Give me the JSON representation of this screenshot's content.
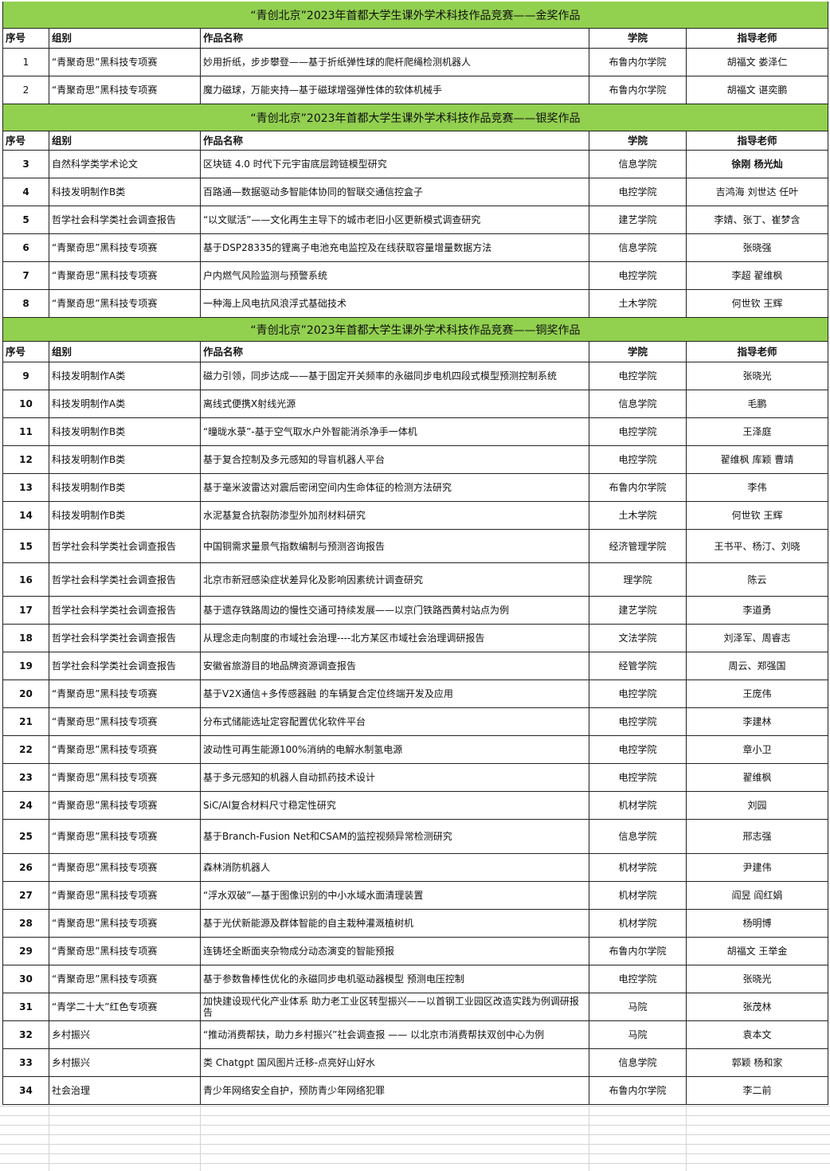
{
  "headers": [
    "序号",
    "组别",
    "作品名称",
    "学院",
    "指导老师"
  ],
  "sections": [
    {
      "title": "“青创北京”2023年首都大学生课外学术科技作品竞赛——金奖作品",
      "bold_numbers": false,
      "rows": [
        [
          "1",
          "“青聚奇思”黑科技专项赛",
          "妙用折纸，步步攀登——基于折纸弹性球的爬杆爬绳检测机器人",
          "布鲁内尔学院",
          "胡福文 娄泽仁"
        ],
        [
          "2",
          "“青聚奇思”黑科技专项赛",
          "魔力磁球，万能夹持—基于磁球增强弹性体的软体机械手",
          "布鲁内尔学院",
          "胡福文 谌奕鹏"
        ]
      ]
    },
    {
      "title": "“青创北京”2023年首都大学生课外学术科技作品竞赛——银奖作品",
      "bold_numbers": true,
      "rows": [
        [
          "3",
          "自然科学类学术论文",
          "区块链 4.0 时代下元宇宙底层跨链模型研究",
          "信息学院",
          "徐刚 杨光灿"
        ],
        [
          "4",
          "科技发明制作B类",
          "百路通—数据驱动多智能体协同的智联交通信控盒子",
          "电控学院",
          "吉鸿海 刘世达 任叶"
        ],
        [
          "5",
          "哲学社会科学类社会调查报告",
          "“以文赋活”——文化再生主导下的城市老旧小区更新模式调查研究",
          "建艺学院",
          "李婧、张丁、崔梦含"
        ],
        [
          "6",
          "“青聚奇思”黑科技专项赛",
          "基于DSP28335的锂离子电池充电监控及在线获取容量增量数据方法",
          "信息学院",
          "张晓强"
        ],
        [
          "7",
          "“青聚奇思”黑科技专项赛",
          "户内燃气风险监测与预警系统",
          "电控学院",
          "李超 翟维枫"
        ],
        [
          "8",
          "“青聚奇思”黑科技专项赛",
          "一种海上风电抗风浪浮式基础技术",
          "土木学院",
          "何世钦 王辉"
        ]
      ]
    },
    {
      "title": "“青创北京”2023年首都大学生课外学术科技作品竞赛——铜奖作品",
      "bold_numbers": true,
      "rows": [
        [
          "9",
          "科技发明制作A类",
          "磁力引领，同步达成——基于固定开关频率的永磁同步电机四段式模型预测控制系统",
          "电控学院",
          "张晓光"
        ],
        [
          "10",
          "科技发明制作A类",
          "离线式便携X射线光源",
          "信息学院",
          "毛鹏"
        ],
        [
          "11",
          "科技发明制作B类",
          "“曈昽水菉”-基于空气取水户外智能消杀净手一体机",
          "电控学院",
          "王泽庭"
        ],
        [
          "12",
          "科技发明制作B类",
          "基于复合控制及多元感知的导盲机器人平台",
          "电控学院",
          "翟维枫 库颖 曹靖"
        ],
        [
          "13",
          "科技发明制作B类",
          "基于毫米波雷达对震后密闭空间内生命体征的检测方法研究",
          "布鲁内尔学院",
          "李伟"
        ],
        [
          "14",
          "科技发明制作B类",
          "水泥基复合抗裂防渗型外加剂材料研究",
          "土木学院",
          "何世钦 王辉"
        ],
        [
          "15",
          "哲学社会科学类社会调查报告",
          "中国铜需求量景气指数编制与预测咨询报告",
          "经济管理学院",
          "王书平、杨汀、刘晓"
        ],
        [
          "16",
          "哲学社会科学类社会调查报告",
          "北京市新冠感染症状差异化及影响因素统计调查研究",
          "理学院",
          "陈云"
        ],
        [
          "17",
          "哲学社会科学类社会调查报告",
          "基于遗存铁路周边的慢性交通可持续发展——以京门铁路西黄村站点为例",
          "建艺学院",
          "李道勇"
        ],
        [
          "18",
          "哲学社会科学类社会调查报告",
          "从理念走向制度的市域社会治理----北方某区市域社会治理调研报告",
          "文法学院",
          "刘泽军、周睿志"
        ],
        [
          "19",
          "哲学社会科学类社会调查报告",
          "安徽省旅游目的地品牌资源调查报告",
          "经管学院",
          "周云、郑强国"
        ],
        [
          "20",
          "“青聚奇思”黑科技专项赛",
          "基于V2X通信+多传感器融 的车辆复合定位终端开发及应用",
          "电控学院",
          "王庞伟"
        ],
        [
          "21",
          "“青聚奇思”黑科技专项赛",
          "分布式储能选址定容配置优化软件平台",
          "电控学院",
          "李建林"
        ],
        [
          "22",
          "“青聚奇思”黑科技专项赛",
          "波动性可再生能源100%消纳的电解水制氢电源",
          "电控学院",
          "章小卫"
        ],
        [
          "23",
          "“青聚奇思”黑科技专项赛",
          "基于多元感知的机器人自动抓药技术设计",
          "电控学院",
          "翟维枫"
        ],
        [
          "24",
          "“青聚奇思”黑科技专项赛",
          "SiC/Al复合材料尺寸稳定性研究",
          "机材学院",
          "刘园"
        ],
        [
          "25",
          "“青聚奇思”黑科技专项赛",
          "基于Branch-Fusion Net和CSAM的监控视频异常检测研究",
          "信息学院",
          "邢志强"
        ],
        [
          "26",
          "“青聚奇思”黑科技专项赛",
          "森林消防机器人",
          "机材学院",
          "尹建伟"
        ],
        [
          "27",
          "“青聚奇思”黑科技专项赛",
          "“浮水双破”—基于图像识别的中小水域水面清理装置",
          "机材学院",
          "阎昱 阎红娟"
        ],
        [
          "28",
          "“青聚奇思”黑科技专项赛",
          "基于光伏新能源及群体智能的自主栽种灌溉植树机",
          "机材学院",
          "杨明博"
        ],
        [
          "29",
          "“青聚奇思”黑科技专项赛",
          "连铸坯全断面夹杂物成分动态演变的智能预报",
          "布鲁内尔学院",
          "胡福文 王举金"
        ],
        [
          "30",
          "“青聚奇思”黑科技专项赛",
          "基于参数鲁棒性优化的永磁同步电机驱动器模型 预测电压控制",
          "电控学院",
          "张晓光"
        ],
        [
          "31",
          "“青学二十大”红色专项赛",
          "加快建设现代化产业体系 助力老工业区转型振兴——以首钢工业园区改造实践为例调研报告",
          "马院",
          "张茂林"
        ],
        [
          "32",
          "乡村振兴",
          "“推动消费帮扶，助力乡村振兴”社会调查报 —— 以北京市消费帮扶双创中心为例",
          "马院",
          "袁本文"
        ],
        [
          "33",
          "乡村振兴",
          "类 Chatgpt 国风图片迁移-点亮好山好水",
          "信息学院",
          "郭颖 杨和家"
        ],
        [
          "34",
          "社会治理",
          "青少年网络安全自护，预防青少年网络犯罪",
          "布鲁内尔学院",
          "李二前"
        ]
      ]
    }
  ],
  "colors": {
    "section_title_bg": "#92d050",
    "grid": "#222222"
  }
}
